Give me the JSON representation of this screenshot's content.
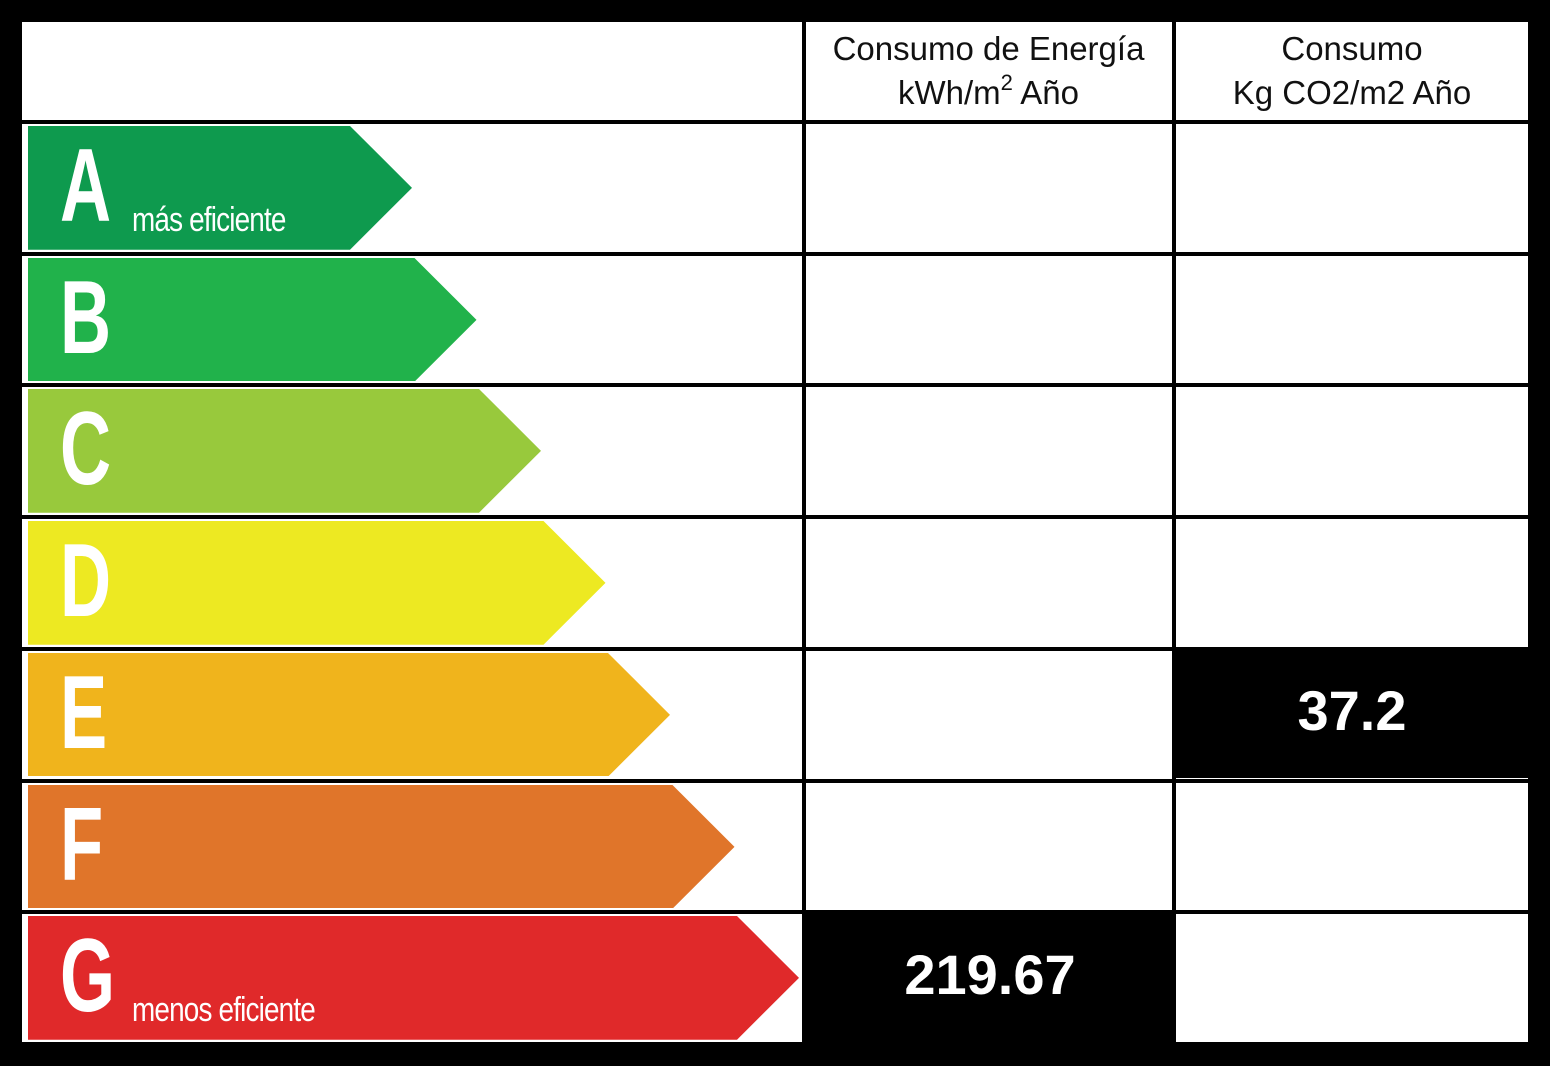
{
  "header": {
    "energy_line1": "Consumo de Energía",
    "energy_line2_prefix": "kWh/m",
    "energy_line2_sup": "2",
    "energy_line2_suffix": " Año",
    "co2_line1": "Consumo",
    "co2_line2": "Kg CO2/m2 Año"
  },
  "ratings": [
    {
      "letter": "A",
      "subtitle": "más eficiente",
      "color": "#0e9a4e"
    },
    {
      "letter": "B",
      "subtitle": "",
      "color": "#21b24b"
    },
    {
      "letter": "C",
      "subtitle": "",
      "color": "#98c93c"
    },
    {
      "letter": "D",
      "subtitle": "",
      "color": "#ede922"
    },
    {
      "letter": "E",
      "subtitle": "",
      "color": "#f0b41c"
    },
    {
      "letter": "F",
      "subtitle": "",
      "color": "#e0752a"
    },
    {
      "letter": "G",
      "subtitle": "menos eficiente",
      "color": "#e0292a"
    }
  ],
  "results": {
    "energy": {
      "value": "219.67",
      "rating": "G"
    },
    "co2": {
      "value": "37.2",
      "rating": "E"
    }
  }
}
